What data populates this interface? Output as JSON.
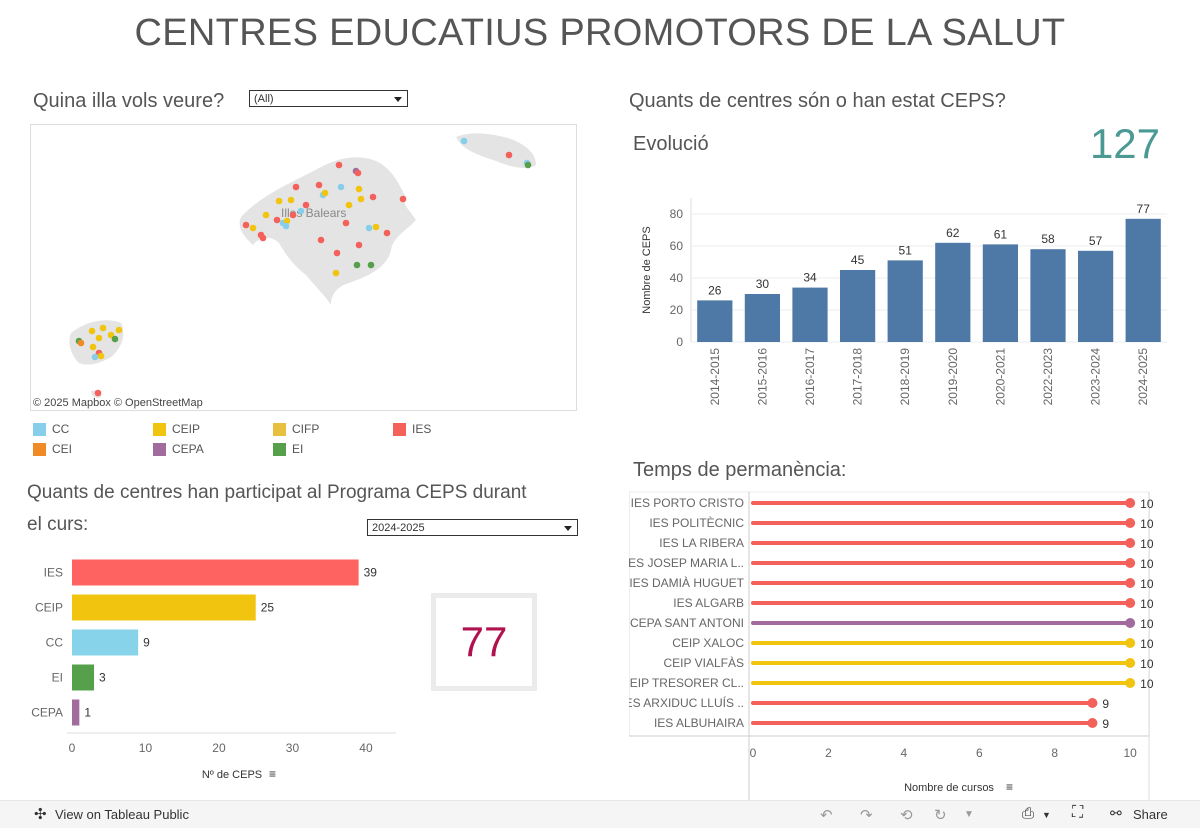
{
  "title": "CENTRES EDUCATIUS PROMOTORS DE LA SALUT",
  "island_filter": {
    "label": "Quina illa vols veure?",
    "value": "(All)"
  },
  "map": {
    "attribution": "© 2025 Mapbox  © OpenStreetMap",
    "place_label": "Illes Balears"
  },
  "legend": [
    {
      "label": "CC",
      "color": "#87ceeb"
    },
    {
      "label": "CEIP",
      "color": "#f1c40f"
    },
    {
      "label": "CIFP",
      "color": "#e8c040"
    },
    {
      "label": "IES",
      "color": "#f4605a"
    },
    {
      "label": "CEI",
      "color": "#f08a24"
    },
    {
      "label": "CEPA",
      "color": "#a26b9e"
    },
    {
      "label": "EI",
      "color": "#56a04c"
    }
  ],
  "evolution": {
    "heading": "Quants de centres són o han estat CEPS?",
    "subheading": "Evolució",
    "total": "127"
  },
  "participation": {
    "heading_line1": "Quants de centres han participat al Programa CEPS durant",
    "heading_line2": "el curs:",
    "year_filter": "2024-2025",
    "kpi": "77"
  },
  "permanence": {
    "heading": "Temps de permanència:"
  },
  "toolbar": {
    "view_label": "View on Tableau Public",
    "share_label": "Share"
  },
  "chart_data": [
    {
      "type": "bar",
      "title": "Evolució",
      "ylabel": "Nombre de CEPS",
      "xlabel": "",
      "ylim": [
        0,
        90
      ],
      "yticks": [
        0,
        20,
        40,
        60,
        80
      ],
      "categories": [
        "2014-2015",
        "2015-2016",
        "2016-2017",
        "2017-2018",
        "2018-2019",
        "2019-2020",
        "2020-2021",
        "2022-2023",
        "2023-2024",
        "2024-2025"
      ],
      "values": [
        26,
        30,
        34,
        45,
        51,
        62,
        61,
        58,
        57,
        77
      ],
      "color": "#4e79a7"
    },
    {
      "type": "bar",
      "orientation": "horizontal",
      "xlabel": "Nº de CEPS",
      "xlim": [
        0,
        43
      ],
      "xticks": [
        0,
        10,
        20,
        30,
        40
      ],
      "categories": [
        "IES",
        "CEIP",
        "CC",
        "EI",
        "CEPA"
      ],
      "values": [
        39,
        25,
        9,
        3,
        1
      ],
      "colors": [
        "#ff6361",
        "#f1c40f",
        "#87d3ea",
        "#56a04c",
        "#a26b9e"
      ]
    },
    {
      "type": "lollipop",
      "xlabel": "Nombre de cursos",
      "xlim": [
        0,
        10.5
      ],
      "xticks": [
        0,
        2,
        4,
        6,
        8,
        10
      ],
      "categories": [
        "IES PORTO CRISTO",
        "IES POLITÈCNIC",
        "IES LA RIBERA",
        "IES JOSEP MARIA L..",
        "IES DAMIÀ HUGUET",
        "IES ALGARB",
        "CEPA SANT ANTONI",
        "CEIP XALOC",
        "CEIP VIALFÀS",
        "CEIP TRESORER CL..",
        "IES ARXIDUC LLUÍS ..",
        "IES ALBUHAIRA"
      ],
      "values": [
        10,
        10,
        10,
        10,
        10,
        10,
        10,
        10,
        10,
        10,
        9,
        9
      ],
      "colors": [
        "#f4605a",
        "#f4605a",
        "#f4605a",
        "#f4605a",
        "#f4605a",
        "#f4605a",
        "#a26b9e",
        "#f1c40f",
        "#f1c40f",
        "#f1c40f",
        "#f4605a",
        "#f4605a"
      ]
    }
  ]
}
